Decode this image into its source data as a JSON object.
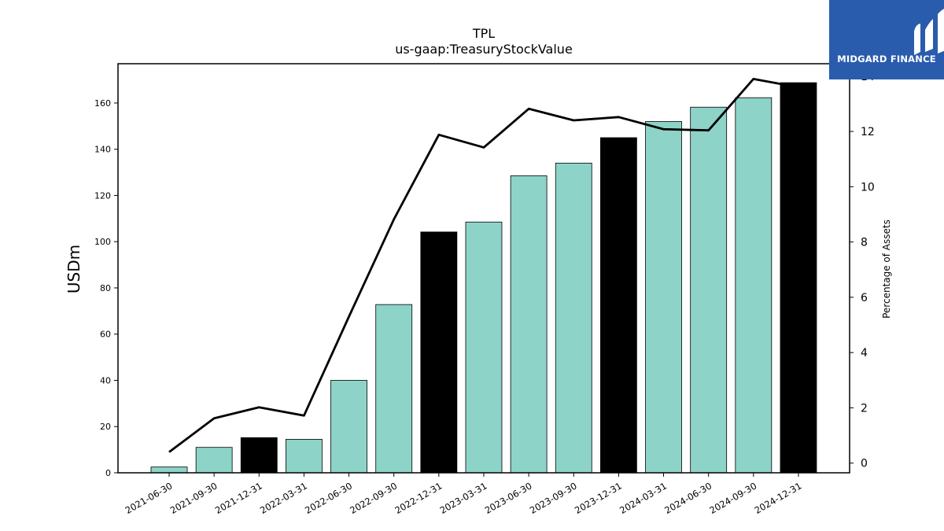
{
  "logo": {
    "text": "MIDGARD FINANCE"
  },
  "chart_data": {
    "type": "bar",
    "title": "TPL",
    "subtitle": "us-gaap:TreasuryStockValue",
    "ylabel": "USDm",
    "y2label": "Percentage of Assets",
    "categories": [
      "2021-06-30",
      "2021-09-30",
      "2021-12-31",
      "2022-03-31",
      "2022-06-30",
      "2022-09-30",
      "2022-12-31",
      "2023-03-31",
      "2023-06-30",
      "2023-09-30",
      "2023-12-31",
      "2024-03-31",
      "2024-06-30",
      "2024-09-30",
      "2024-12-31"
    ],
    "series": [
      {
        "type": "bar",
        "axis": "left",
        "values": [
          2.5,
          11,
          15.2,
          14.5,
          40,
          72.8,
          104.2,
          108.5,
          128.5,
          134,
          145,
          152,
          158.2,
          162.3,
          168.8
        ],
        "highlight": [
          false,
          false,
          true,
          false,
          false,
          false,
          true,
          false,
          false,
          false,
          true,
          false,
          false,
          false,
          true
        ]
      },
      {
        "type": "line",
        "axis": "right",
        "values": [
          0.4,
          1.62,
          2.02,
          1.72,
          5.3,
          8.82,
          11.88,
          11.42,
          12.82,
          12.4,
          12.52,
          12.08,
          12.04,
          13.9,
          13.6
        ]
      }
    ],
    "ylim": [
      0,
      177
    ],
    "y_ticks": [
      0,
      20,
      40,
      60,
      80,
      100,
      120,
      140,
      160
    ],
    "y2lim": [
      -0.35,
      14.45
    ],
    "y2_ticks": [
      0,
      2,
      4,
      6,
      8,
      10,
      12,
      14
    ],
    "grid": false,
    "colors": {
      "bar": "#8dd3c7",
      "bar_highlight": "#000000",
      "line": "#000000",
      "edge": "#000000"
    }
  }
}
